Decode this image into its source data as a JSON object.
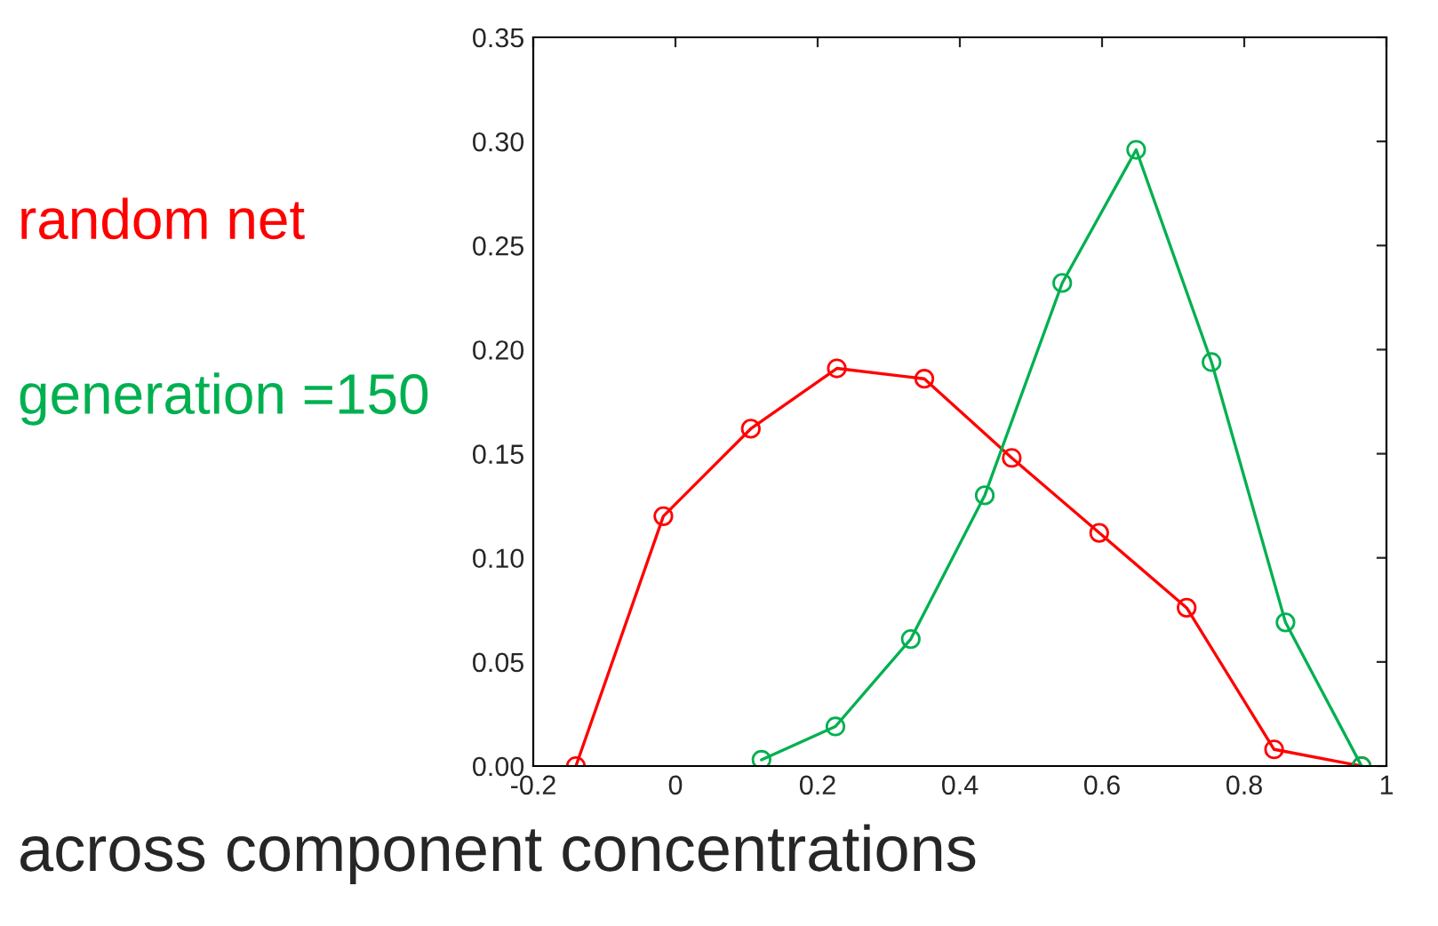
{
  "chart_data": {
    "type": "line",
    "xlabel": "across component concentrations",
    "xlim": [
      -0.2,
      1.0
    ],
    "xticks": [
      -0.2,
      0,
      0.2,
      0.4,
      0.6,
      0.8,
      1
    ],
    "ylim": [
      0,
      0.35
    ],
    "yticks": [
      {
        "value": 0,
        "label": "0.00"
      },
      {
        "value": 0.05,
        "label": "0.05"
      },
      {
        "value": 0.1,
        "label": "0.10"
      },
      {
        "value": 0.15,
        "label": "0.15"
      },
      {
        "value": 0.2,
        "label": "0.20"
      },
      {
        "value": 0.25,
        "label": "0.25"
      },
      {
        "value": 0.3,
        "label": "0.30"
      },
      {
        "value": 0.35,
        "label": "0.35"
      }
    ],
    "marker": "circle",
    "grid": false,
    "series": [
      {
        "name": "random net",
        "color": "#ff0000",
        "x": [
          -0.14,
          -0.017,
          0.106,
          0.227,
          0.35,
          0.473,
          0.596,
          0.719,
          0.842,
          0.965
        ],
        "values": [
          0,
          0.12,
          0.162,
          0.191,
          0.186,
          0.148,
          0.112,
          0.076,
          0.008,
          0
        ]
      },
      {
        "name": "generation =150",
        "color": "#00b050",
        "x": [
          0.121,
          0.225,
          0.331,
          0.435,
          0.544,
          0.648,
          0.754,
          0.858,
          0.965
        ],
        "values": [
          0.003,
          0.019,
          0.061,
          0.13,
          0.232,
          0.296,
          0.194,
          0.069,
          0
        ]
      }
    ]
  }
}
